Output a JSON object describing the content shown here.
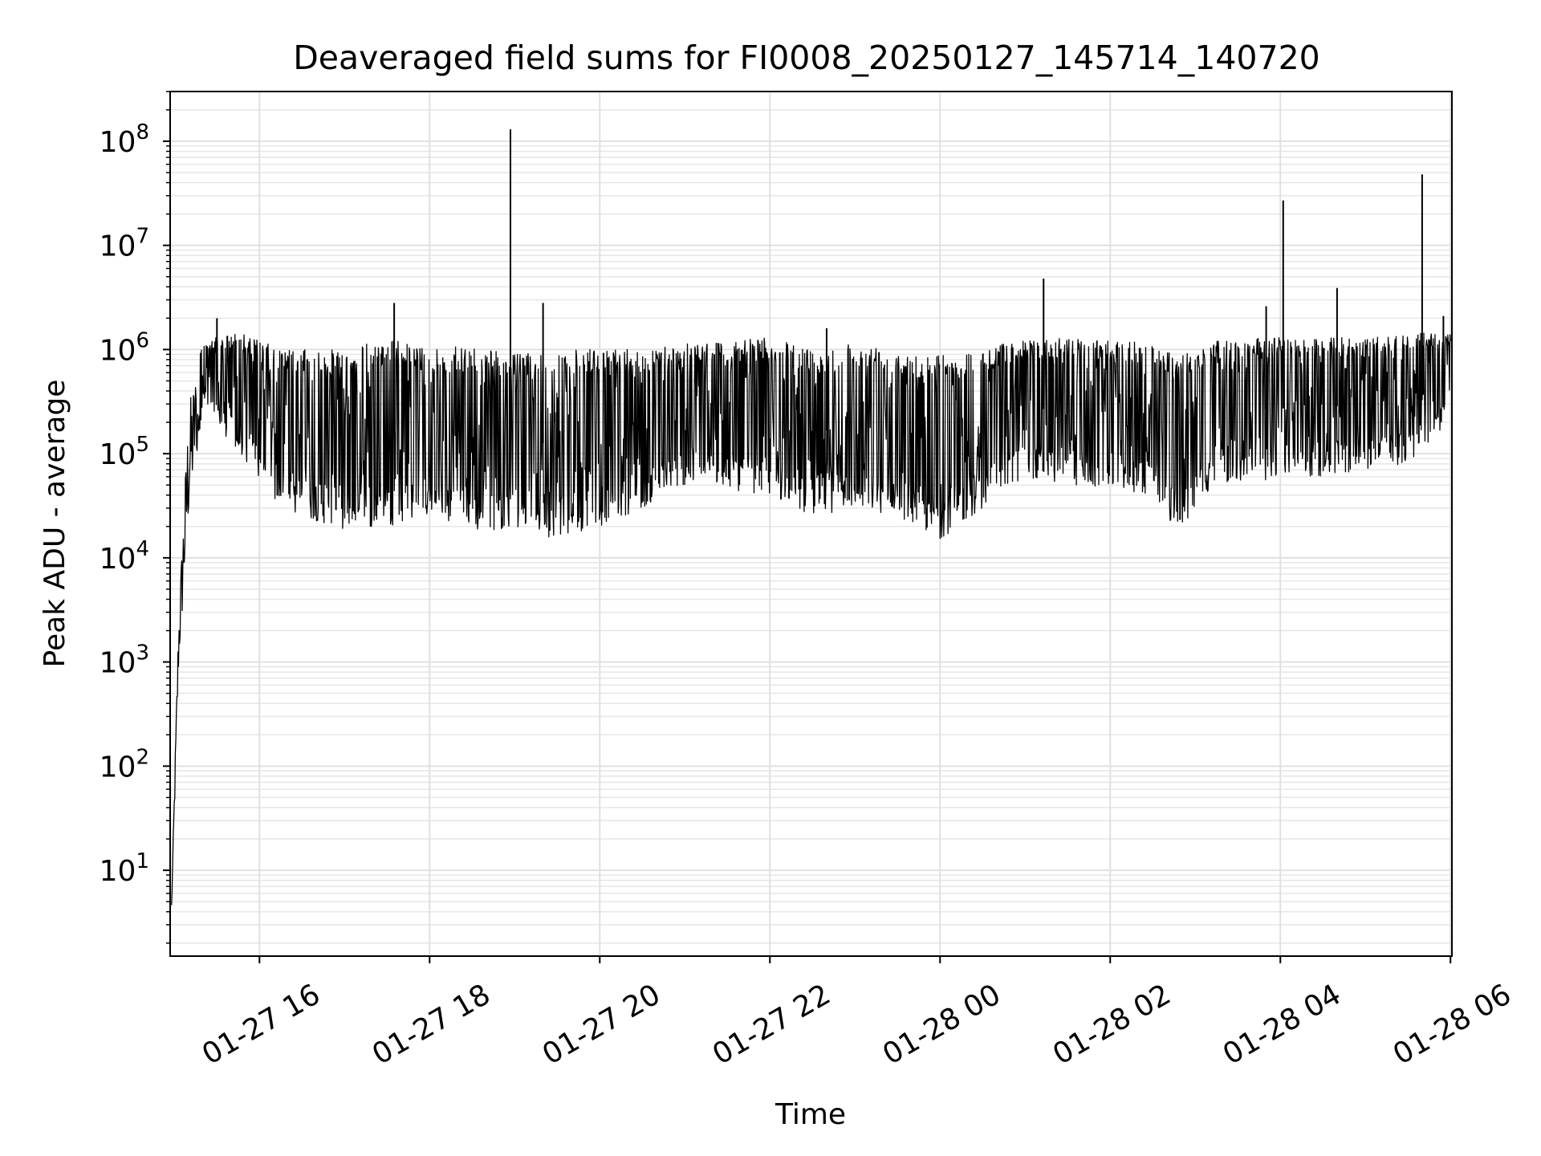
{
  "chart_data": {
    "type": "line",
    "title": "Deaveraged field sums for FI0008_20250127_145714_140720",
    "xlabel": "Time",
    "ylabel": "Peak ADU - average",
    "y_scale": "log",
    "ylim": [
      1.5,
      300000000
    ],
    "xlim": [
      "01-27 14:57",
      "01-28 06:01"
    ],
    "grid": true,
    "legend": "none",
    "x_ticks": [
      {
        "label": "01-27 16",
        "hour": 16
      },
      {
        "label": "01-27 18",
        "hour": 18
      },
      {
        "label": "01-27 20",
        "hour": 20
      },
      {
        "label": "01-27 22",
        "hour": 22
      },
      {
        "label": "01-28 00",
        "hour": 24
      },
      {
        "label": "01-28 02",
        "hour": 26
      },
      {
        "label": "01-28 04",
        "hour": 28
      },
      {
        "label": "01-28 06",
        "hour": 30
      }
    ],
    "y_ticks": [
      {
        "base": "10",
        "exp": "1",
        "value": 10
      },
      {
        "base": "10",
        "exp": "2",
        "value": 100
      },
      {
        "base": "10",
        "exp": "3",
        "value": 1000
      },
      {
        "base": "10",
        "exp": "4",
        "value": 10000
      },
      {
        "base": "10",
        "exp": "5",
        "value": 100000
      },
      {
        "base": "10",
        "exp": "6",
        "value": 1000000
      },
      {
        "base": "10",
        "exp": "7",
        "value": 10000000
      },
      {
        "base": "10",
        "exp": "8",
        "value": 100000000
      }
    ],
    "series": [
      {
        "color": "#000000",
        "envelope": [
          {
            "t": "01-27 14:58",
            "low": 4,
            "high": 5
          },
          {
            "t": "01-27 15:03",
            "low": 800,
            "high": 3000
          },
          {
            "t": "01-27 15:10",
            "low": 20000,
            "high": 300000
          },
          {
            "t": "01-27 15:20",
            "low": 300000,
            "high": 1200000
          },
          {
            "t": "01-27 15:45",
            "low": 100000,
            "high": 1500000
          },
          {
            "t": "01-27 16:15",
            "low": 30000,
            "high": 1000000
          },
          {
            "t": "01-27 17:00",
            "low": 18000,
            "high": 1000000
          },
          {
            "t": "01-27 17:30",
            "low": 20000,
            "high": 1300000
          },
          {
            "t": "01-27 18:00",
            "low": 25000,
            "high": 1000000
          },
          {
            "t": "01-27 18:30",
            "low": 17000,
            "high": 1100000
          },
          {
            "t": "01-27 19:00",
            "low": 20000,
            "high": 900000
          },
          {
            "t": "01-27 19:30",
            "low": 15000,
            "high": 1000000
          },
          {
            "t": "01-27 20:00",
            "low": 20000,
            "high": 1000000
          },
          {
            "t": "01-27 20:30",
            "low": 30000,
            "high": 1000000
          },
          {
            "t": "01-27 21:00",
            "low": 50000,
            "high": 1200000
          },
          {
            "t": "01-27 21:30",
            "low": 45000,
            "high": 1200000
          },
          {
            "t": "01-27 22:00",
            "low": 40000,
            "high": 1300000
          },
          {
            "t": "01-27 22:30",
            "low": 25000,
            "high": 1000000
          },
          {
            "t": "01-27 23:00",
            "low": 30000,
            "high": 1200000
          },
          {
            "t": "01-27 23:30",
            "low": 25000,
            "high": 1000000
          },
          {
            "t": "01-28 00:00",
            "low": 15000,
            "high": 900000
          },
          {
            "t": "01-28 00:30",
            "low": 30000,
            "high": 1000000
          },
          {
            "t": "01-28 01:00",
            "low": 60000,
            "high": 1300000
          },
          {
            "t": "01-28 01:30",
            "low": 50000,
            "high": 1300000
          },
          {
            "t": "01-28 02:00",
            "low": 45000,
            "high": 1200000
          },
          {
            "t": "01-28 02:30",
            "low": 40000,
            "high": 1200000
          },
          {
            "t": "01-28 02:45",
            "low": 17000,
            "high": 900000
          },
          {
            "t": "01-28 03:15",
            "low": 50000,
            "high": 1200000
          },
          {
            "t": "01-28 03:45",
            "low": 55000,
            "high": 1300000
          },
          {
            "t": "01-28 04:30",
            "low": 60000,
            "high": 1300000
          },
          {
            "t": "01-28 05:00",
            "low": 70000,
            "high": 1300000
          },
          {
            "t": "01-28 05:30",
            "low": 80000,
            "high": 1400000
          },
          {
            "t": "01-28 06:00",
            "low": 200000,
            "high": 1500000
          }
        ],
        "spikes": [
          {
            "t": "01-27 15:30",
            "value": 2000000
          },
          {
            "t": "01-27 17:35",
            "value": 2800000
          },
          {
            "t": "01-27 18:57",
            "value": 130000000
          },
          {
            "t": "01-27 19:20",
            "value": 2800000
          },
          {
            "t": "01-27 22:40",
            "value": 1600000
          },
          {
            "t": "01-28 01:13",
            "value": 4800000
          },
          {
            "t": "01-28 03:50",
            "value": 2600000
          },
          {
            "t": "01-28 04:02",
            "value": 27000000
          },
          {
            "t": "01-28 04:40",
            "value": 3900000
          },
          {
            "t": "01-28 05:40",
            "value": 48000000
          },
          {
            "t": "01-28 05:55",
            "value": 2100000
          }
        ]
      }
    ]
  }
}
